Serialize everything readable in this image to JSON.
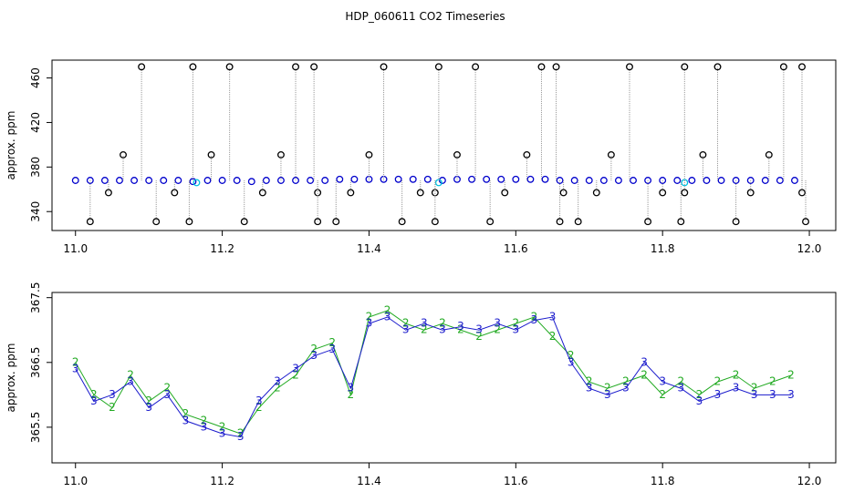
{
  "title": "HDP_060611  CO2 Timeseries",
  "chart_data": [
    {
      "type": "scatter",
      "ylabel": "approx. ppm",
      "xlim": [
        10.968,
        12.036
      ],
      "ylim": [
        323,
        476
      ],
      "xticks": [
        {
          "value": 11,
          "label": "11.0"
        },
        11.2,
        11.4,
        11.6,
        11.8,
        {
          "value": 12,
          "label": "12.0"
        }
      ],
      "yticks": [
        340,
        380,
        420,
        460
      ],
      "series": [
        {
          "color": "#0000cc",
          "spikes": false,
          "x": [
            11.0,
            11.02,
            11.04,
            11.06,
            11.08,
            11.1,
            11.12,
            11.14,
            11.16,
            11.18,
            11.2,
            11.22,
            11.24,
            11.26,
            11.28,
            11.3,
            11.32,
            11.34,
            11.36,
            11.38,
            11.4,
            11.42,
            11.44,
            11.46,
            11.48,
            11.5,
            11.52,
            11.54,
            11.56,
            11.58,
            11.6,
            11.62,
            11.64,
            11.66,
            11.68,
            11.7,
            11.72,
            11.74,
            11.76,
            11.78,
            11.8,
            11.82,
            11.84,
            11.86,
            11.88,
            11.9,
            11.92,
            11.94,
            11.96,
            11.98
          ],
          "values": [
            368,
            368,
            368,
            368,
            368,
            368,
            368,
            368,
            367,
            368,
            368,
            368,
            367,
            368,
            368,
            368,
            368,
            368,
            369,
            369,
            369,
            369,
            369,
            369,
            369,
            368,
            369,
            369,
            369,
            369,
            369,
            369,
            369,
            368,
            368,
            368,
            368,
            368,
            368,
            368,
            368,
            368,
            368,
            368,
            368,
            368,
            368,
            368,
            368,
            368
          ]
        },
        {
          "color": "#00c0e0",
          "spikes": false,
          "x": [
            11.165,
            11.495,
            11.83
          ],
          "values": [
            366,
            366,
            366
          ]
        },
        {
          "color": "#000000",
          "spikes": true,
          "x": [
            11.02,
            11.045,
            11.065,
            11.09,
            11.11,
            11.135,
            11.155,
            11.16,
            11.185,
            11.21,
            11.23,
            11.255,
            11.28,
            11.3,
            11.325,
            11.33,
            11.33,
            11.355,
            11.375,
            11.4,
            11.42,
            11.445,
            11.47,
            11.49,
            11.49,
            11.495,
            11.52,
            11.545,
            11.565,
            11.585,
            11.615,
            11.635,
            11.655,
            11.66,
            11.665,
            11.685,
            11.71,
            11.73,
            11.755,
            11.78,
            11.8,
            11.825,
            11.83,
            11.83,
            11.855,
            11.875,
            11.9,
            11.92,
            11.945,
            11.965,
            11.99,
            11.99,
            11.995
          ],
          "values": [
            331,
            357,
            391,
            470,
            331,
            357,
            331,
            470,
            391,
            470,
            331,
            357,
            391,
            470,
            470,
            357,
            331,
            331,
            357,
            391,
            470,
            331,
            357,
            357,
            331,
            470,
            391,
            470,
            331,
            357,
            391,
            470,
            470,
            331,
            357,
            331,
            357,
            391,
            470,
            331,
            357,
            331,
            357,
            470,
            391,
            470,
            331,
            357,
            391,
            470,
            470,
            357,
            331
          ]
        }
      ]
    },
    {
      "type": "line",
      "ylabel": "approx. ppm",
      "xlim": [
        10.968,
        12.036
      ],
      "ylim": [
        364.95,
        367.58
      ],
      "xticks": [
        {
          "value": 11,
          "label": "11.0"
        },
        11.2,
        11.4,
        11.6,
        11.8,
        {
          "value": 12,
          "label": "12.0"
        }
      ],
      "yticks": [
        365.5,
        366.5,
        367.5
      ],
      "x": [
        11.0,
        11.025,
        11.05,
        11.075,
        11.1,
        11.125,
        11.15,
        11.175,
        11.2,
        11.225,
        11.25,
        11.275,
        11.3,
        11.325,
        11.35,
        11.375,
        11.4,
        11.425,
        11.45,
        11.475,
        11.5,
        11.525,
        11.55,
        11.575,
        11.6,
        11.625,
        11.65,
        11.675,
        11.7,
        11.725,
        11.75,
        11.775,
        11.8,
        11.825,
        11.85,
        11.875,
        11.9,
        11.925,
        11.95,
        11.975
      ],
      "series": [
        {
          "symbol": "2",
          "color": "#22aa22",
          "values": [
            366.5,
            366.0,
            365.8,
            366.3,
            365.9,
            366.1,
            365.7,
            365.6,
            365.5,
            365.4,
            365.8,
            366.1,
            366.3,
            366.7,
            366.8,
            366.0,
            367.2,
            367.3,
            367.1,
            367.0,
            367.1,
            367.0,
            366.9,
            367.0,
            367.1,
            367.2,
            366.9,
            366.6,
            366.2,
            366.1,
            366.2,
            366.3,
            366.0,
            366.2,
            366.0,
            366.2,
            366.3,
            366.1,
            366.2,
            366.3
          ]
        },
        {
          "symbol": "3",
          "color": "#1a1acc",
          "values": [
            366.4,
            365.9,
            366.0,
            366.2,
            365.8,
            366.0,
            365.6,
            365.5,
            365.4,
            365.35,
            365.9,
            366.2,
            366.4,
            366.6,
            366.7,
            366.1,
            367.1,
            367.2,
            367.0,
            367.1,
            367.0,
            367.05,
            367.0,
            367.1,
            367.0,
            367.15,
            367.2,
            366.5,
            366.1,
            366.0,
            366.1,
            366.5,
            366.2,
            366.1,
            365.9,
            366.0,
            366.1,
            366.0,
            366.0,
            366.0
          ]
        }
      ]
    }
  ]
}
